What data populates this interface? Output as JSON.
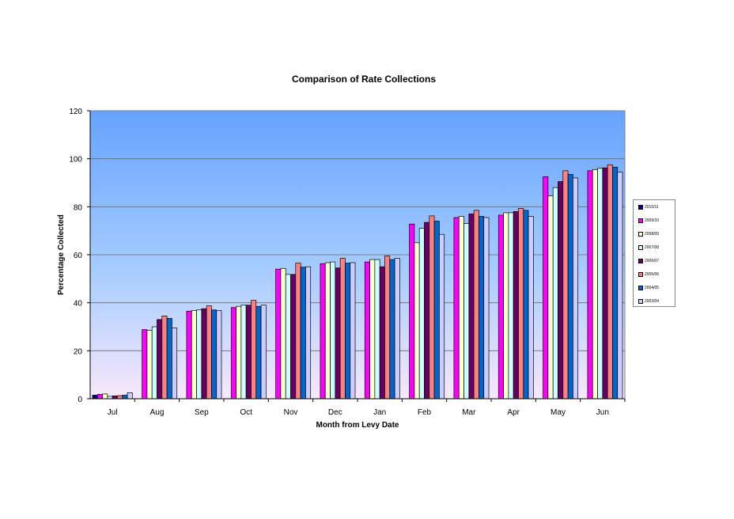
{
  "chart_data": {
    "type": "bar",
    "title": "Comparison  of Rate Collections",
    "xlabel": "Month from Levy Date",
    "ylabel": "Percentage Collected",
    "ylim": [
      0,
      120
    ],
    "yticks": [
      0,
      20,
      40,
      60,
      80,
      100,
      120
    ],
    "grid": true,
    "legend_position": "right",
    "categories": [
      "Jul",
      "Aug",
      "Sep",
      "Oct",
      "Nov",
      "Dec",
      "Jan",
      "Feb",
      "Mar",
      "Apr",
      "May",
      "Jun"
    ],
    "series": [
      {
        "name": "2010/11",
        "color": "#000080",
        "values": [
          1.5,
          null,
          null,
          null,
          null,
          null,
          null,
          null,
          null,
          null,
          null,
          null
        ]
      },
      {
        "name": "2009/10",
        "color": "#ff00ff",
        "values": [
          1.8,
          28.8,
          36.5,
          38.0,
          54.0,
          56.3,
          57.0,
          72.8,
          75.5,
          76.5,
          92.5,
          95.0
        ]
      },
      {
        "name": "2008/09",
        "color": "#ffffcc",
        "values": [
          2.0,
          28.5,
          36.8,
          38.5,
          54.3,
          56.7,
          58.0,
          65.0,
          76.0,
          77.5,
          84.5,
          95.5
        ]
      },
      {
        "name": "2007/08",
        "color": "#ccffff",
        "values": [
          1.0,
          30.0,
          37.0,
          39.0,
          51.8,
          57.0,
          58.0,
          71.0,
          73.0,
          77.5,
          88.0,
          96.0
        ]
      },
      {
        "name": "2006/07",
        "color": "#660066",
        "values": [
          1.2,
          33.0,
          37.5,
          39.0,
          51.8,
          54.5,
          55.0,
          73.5,
          77.0,
          78.0,
          90.5,
          96.2
        ]
      },
      {
        "name": "2005/06",
        "color": "#ff8080",
        "values": [
          1.3,
          34.5,
          38.7,
          41.0,
          56.5,
          58.5,
          59.5,
          76.2,
          78.5,
          79.3,
          95.0,
          97.5
        ]
      },
      {
        "name": "2004/05",
        "color": "#0066cc",
        "values": [
          1.5,
          33.5,
          37.0,
          38.5,
          54.8,
          56.5,
          58.0,
          74.0,
          76.0,
          78.5,
          93.5,
          96.5
        ]
      },
      {
        "name": "2003/04",
        "color": "#ccccff",
        "values": [
          2.5,
          29.5,
          36.7,
          39.0,
          55.0,
          56.7,
          58.5,
          68.5,
          75.5,
          76.0,
          92.0,
          94.5
        ]
      }
    ]
  }
}
